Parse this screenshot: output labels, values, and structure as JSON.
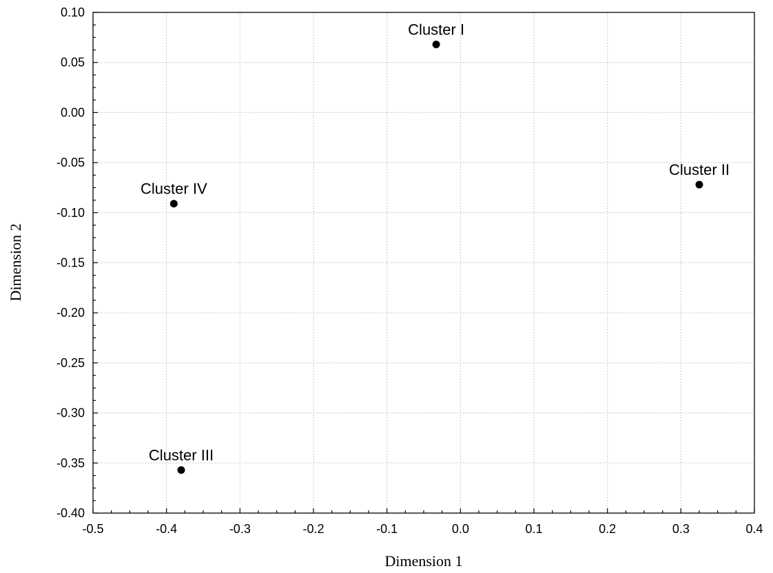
{
  "chart_data": {
    "type": "scatter",
    "title": "",
    "xlabel": "Dimension 1",
    "ylabel": "Dimension 2",
    "xlim": [
      -0.5,
      0.4
    ],
    "ylim": [
      -0.4,
      0.1
    ],
    "grid": true,
    "x_ticks": [
      "-0.5",
      "-0.4",
      "-0.3",
      "-0.2",
      "-0.1",
      "0.0",
      "0.1",
      "0.2",
      "0.3",
      "0.4"
    ],
    "y_ticks": [
      "0.10",
      "0.05",
      "0.00",
      "-0.05",
      "-0.10",
      "-0.15",
      "-0.20",
      "-0.25",
      "-0.30",
      "-0.35",
      "-0.40"
    ],
    "points": [
      {
        "label": "Cluster I",
        "x": -0.033,
        "y": 0.068
      },
      {
        "label": "Cluster II",
        "x": 0.325,
        "y": -0.072
      },
      {
        "label": "Cluster III",
        "x": -0.38,
        "y": -0.357
      },
      {
        "label": "Cluster IV",
        "x": -0.39,
        "y": -0.091
      }
    ],
    "point_color": "#000000"
  }
}
